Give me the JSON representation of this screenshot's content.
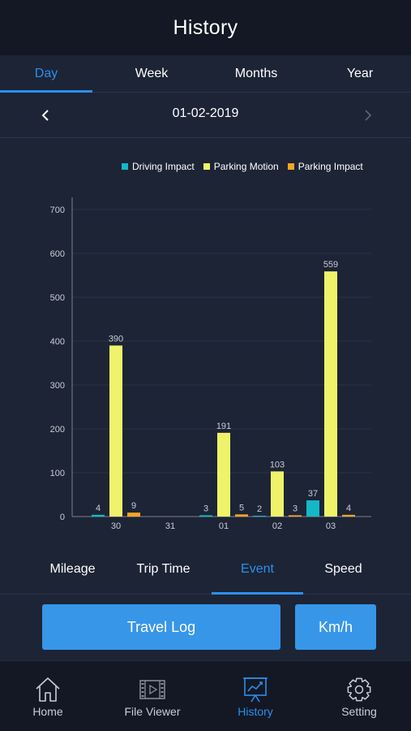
{
  "header": {
    "title": "History"
  },
  "period_tabs": [
    {
      "label": "Day",
      "active": true
    },
    {
      "label": "Week",
      "active": false
    },
    {
      "label": "Months",
      "active": false
    },
    {
      "label": "Year",
      "active": false
    }
  ],
  "date_nav": {
    "date": "01-02-2019",
    "prev_icon": "chevron-left-icon",
    "next_icon": "chevron-right-icon"
  },
  "colors": {
    "accent": "#2d8fea",
    "driving_impact": "#14b8c8",
    "parking_motion": "#eef36a",
    "parking_impact": "#f5a623"
  },
  "chart_data": {
    "type": "bar",
    "categories": [
      "30",
      "31",
      "01",
      "02",
      "03"
    ],
    "yticks": [
      "0",
      "100",
      "200",
      "300",
      "400",
      "500",
      "600",
      "700"
    ],
    "ylim": [
      0,
      700
    ],
    "grid": true,
    "legend_position": "top-right",
    "series": [
      {
        "name": "Driving Impact",
        "color": "#14b8c8",
        "values": [
          4,
          null,
          3,
          2,
          37
        ]
      },
      {
        "name": "Parking Motion",
        "color": "#eef36a",
        "values": [
          390,
          null,
          191,
          103,
          559
        ]
      },
      {
        "name": "Parking Impact",
        "color": "#f5a623",
        "values": [
          9,
          null,
          5,
          3,
          4
        ]
      }
    ]
  },
  "metric_tabs": [
    {
      "label": "Mileage",
      "active": false
    },
    {
      "label": "Trip Time",
      "active": false
    },
    {
      "label": "Event",
      "active": true
    },
    {
      "label": "Speed",
      "active": false
    }
  ],
  "buttons": {
    "travel_log": "Travel Log",
    "unit": "Km/h"
  },
  "bottom_nav": [
    {
      "label": "Home",
      "icon": "home-icon",
      "active": false
    },
    {
      "label": "File Viewer",
      "icon": "film-icon",
      "active": false
    },
    {
      "label": "History",
      "icon": "history-chart-icon",
      "active": true
    },
    {
      "label": "Setting",
      "icon": "gear-icon",
      "active": false
    }
  ]
}
